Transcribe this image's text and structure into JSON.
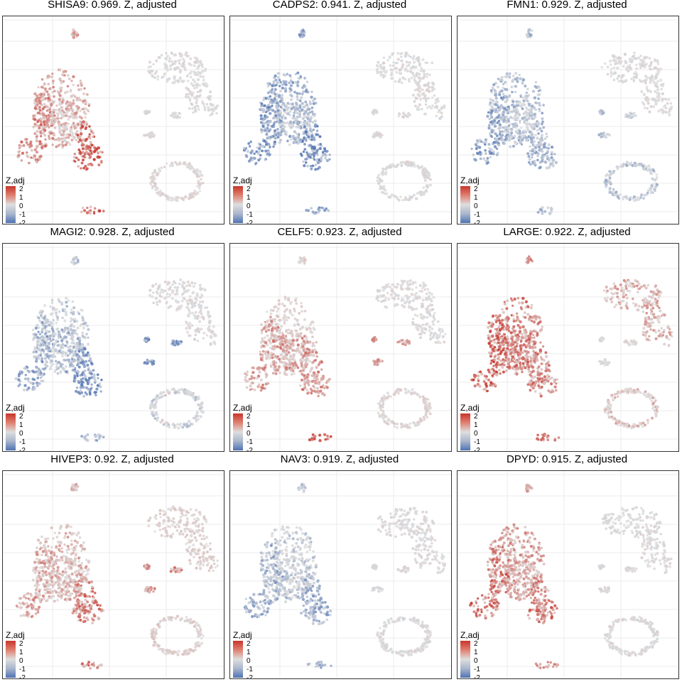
{
  "chart_data": [
    {
      "type": "scatter",
      "title": "SHISA9: 0.969. Z, adjusted",
      "gene": "SHISA9",
      "score": 0.969,
      "legend_title": "Z,adj",
      "legend_ticks": [
        "2",
        "1",
        "0",
        "-1",
        "-2"
      ],
      "colorscale": {
        "low": "#4f73b3",
        "mid": "#dedede",
        "high": "#c8352b"
      },
      "grid": true,
      "cluster_levels": {
        "top": 0.8,
        "left_arc": 1.3,
        "center": 0.4,
        "right_lobe": 1.8,
        "bottom": 1.5,
        "right_upper": 0.0,
        "right_loop": 0.1,
        "small_islands": 0.0
      }
    },
    {
      "type": "scatter",
      "title": "CADPS2: 0.941. Z, adjusted",
      "gene": "CADPS2",
      "score": 0.941,
      "legend_title": "Z,adj",
      "legend_ticks": [
        "2",
        "1",
        "0",
        "-1",
        "-2"
      ],
      "colorscale": {
        "low": "#4f73b3",
        "mid": "#dedede",
        "high": "#c8352b"
      },
      "grid": true,
      "cluster_levels": {
        "top": -1.2,
        "left_arc": -1.5,
        "center": -0.5,
        "right_lobe": -1.7,
        "bottom": -1.4,
        "right_upper": 0.0,
        "right_loop": 0.0,
        "small_islands": 0.0
      }
    },
    {
      "type": "scatter",
      "title": "FMN1: 0.929. Z, adjusted",
      "gene": "FMN1",
      "score": 0.929,
      "legend_title": "Z,adj",
      "legend_ticks": [
        "2",
        "1",
        "0",
        "-1",
        "-2"
      ],
      "colorscale": {
        "low": "#4f73b3",
        "mid": "#dedede",
        "high": "#c8352b"
      },
      "grid": true,
      "cluster_levels": {
        "top": -0.8,
        "left_arc": -1.4,
        "center": -0.6,
        "right_lobe": -1.2,
        "bottom": -0.6,
        "right_upper": 0.0,
        "right_loop": -0.5,
        "small_islands": -0.6
      }
    },
    {
      "type": "scatter",
      "title": "MAGI2: 0.928. Z, adjusted",
      "gene": "MAGI2",
      "score": 0.928,
      "legend_title": "Z,adj",
      "legend_ticks": [
        "2",
        "1",
        "0",
        "-1",
        "-2"
      ],
      "colorscale": {
        "low": "#4f73b3",
        "mid": "#dedede",
        "high": "#c8352b"
      },
      "grid": true,
      "cluster_levels": {
        "top": -0.5,
        "left_arc": -1.3,
        "center": -0.9,
        "right_lobe": -1.7,
        "bottom": -0.9,
        "right_upper": 0.0,
        "right_loop": -0.3,
        "small_islands": -1.6
      }
    },
    {
      "type": "scatter",
      "title": "CELF5: 0.923. Z, adjusted",
      "gene": "CELF5",
      "score": 0.923,
      "legend_title": "Z,adj",
      "legend_ticks": [
        "2",
        "1",
        "0",
        "-1",
        "-2"
      ],
      "colorscale": {
        "low": "#4f73b3",
        "mid": "#dedede",
        "high": "#c8352b"
      },
      "grid": true,
      "cluster_levels": {
        "top": 0.2,
        "left_arc": 1.0,
        "center": 0.9,
        "right_lobe": 1.1,
        "bottom": 1.8,
        "right_upper": 0.0,
        "right_loop": 0.1,
        "small_islands": 1.0
      }
    },
    {
      "type": "scatter",
      "title": "LARGE: 0.922. Z, adjusted",
      "gene": "LARGE",
      "score": 0.922,
      "legend_title": "Z,adj",
      "legend_ticks": [
        "2",
        "1",
        "0",
        "-1",
        "-2"
      ],
      "colorscale": {
        "low": "#4f73b3",
        "mid": "#dedede",
        "high": "#c8352b"
      },
      "grid": true,
      "cluster_levels": {
        "top": 1.3,
        "left_arc": 1.8,
        "center": 1.3,
        "right_lobe": 1.2,
        "bottom": 1.4,
        "right_upper": 0.7,
        "right_loop": 0.4,
        "small_islands": 0.0
      }
    },
    {
      "type": "scatter",
      "title": "HIVEP3: 0.92. Z, adjusted",
      "gene": "HIVEP3",
      "score": 0.92,
      "legend_title": "Z,adj",
      "legend_ticks": [
        "2",
        "1",
        "0",
        "-1",
        "-2"
      ],
      "colorscale": {
        "low": "#4f73b3",
        "mid": "#dedede",
        "high": "#c8352b"
      },
      "grid": true,
      "cluster_levels": {
        "top": 0.5,
        "left_arc": 0.8,
        "center": 0.6,
        "right_lobe": 1.4,
        "bottom": 1.3,
        "right_upper": 0.2,
        "right_loop": 0.2,
        "small_islands": 1.2
      }
    },
    {
      "type": "scatter",
      "title": "NAV3: 0.919. Z, adjusted",
      "gene": "NAV3",
      "score": 0.919,
      "legend_title": "Z,adj",
      "legend_ticks": [
        "2",
        "1",
        "0",
        "-1",
        "-2"
      ],
      "colorscale": {
        "low": "#4f73b3",
        "mid": "#dedede",
        "high": "#c8352b"
      },
      "grid": true,
      "cluster_levels": {
        "top": -0.4,
        "left_arc": -1.2,
        "center": -0.5,
        "right_lobe": -1.2,
        "bottom": -0.9,
        "right_upper": 0.0,
        "right_loop": 0.0,
        "small_islands": 0.0
      }
    },
    {
      "type": "scatter",
      "title": "DPYD: 0.915. Z, adjusted",
      "gene": "DPYD",
      "score": 0.915,
      "legend_title": "Z,adj",
      "legend_ticks": [
        "2",
        "1",
        "0",
        "-1",
        "-2"
      ],
      "colorscale": {
        "low": "#4f73b3",
        "mid": "#dedede",
        "high": "#c8352b"
      },
      "grid": true,
      "cluster_levels": {
        "top": 0.9,
        "left_arc": 1.6,
        "center": 0.8,
        "right_lobe": 1.4,
        "bottom": 1.3,
        "right_upper": 0.0,
        "right_loop": 0.0,
        "small_islands": 0.0
      }
    }
  ]
}
